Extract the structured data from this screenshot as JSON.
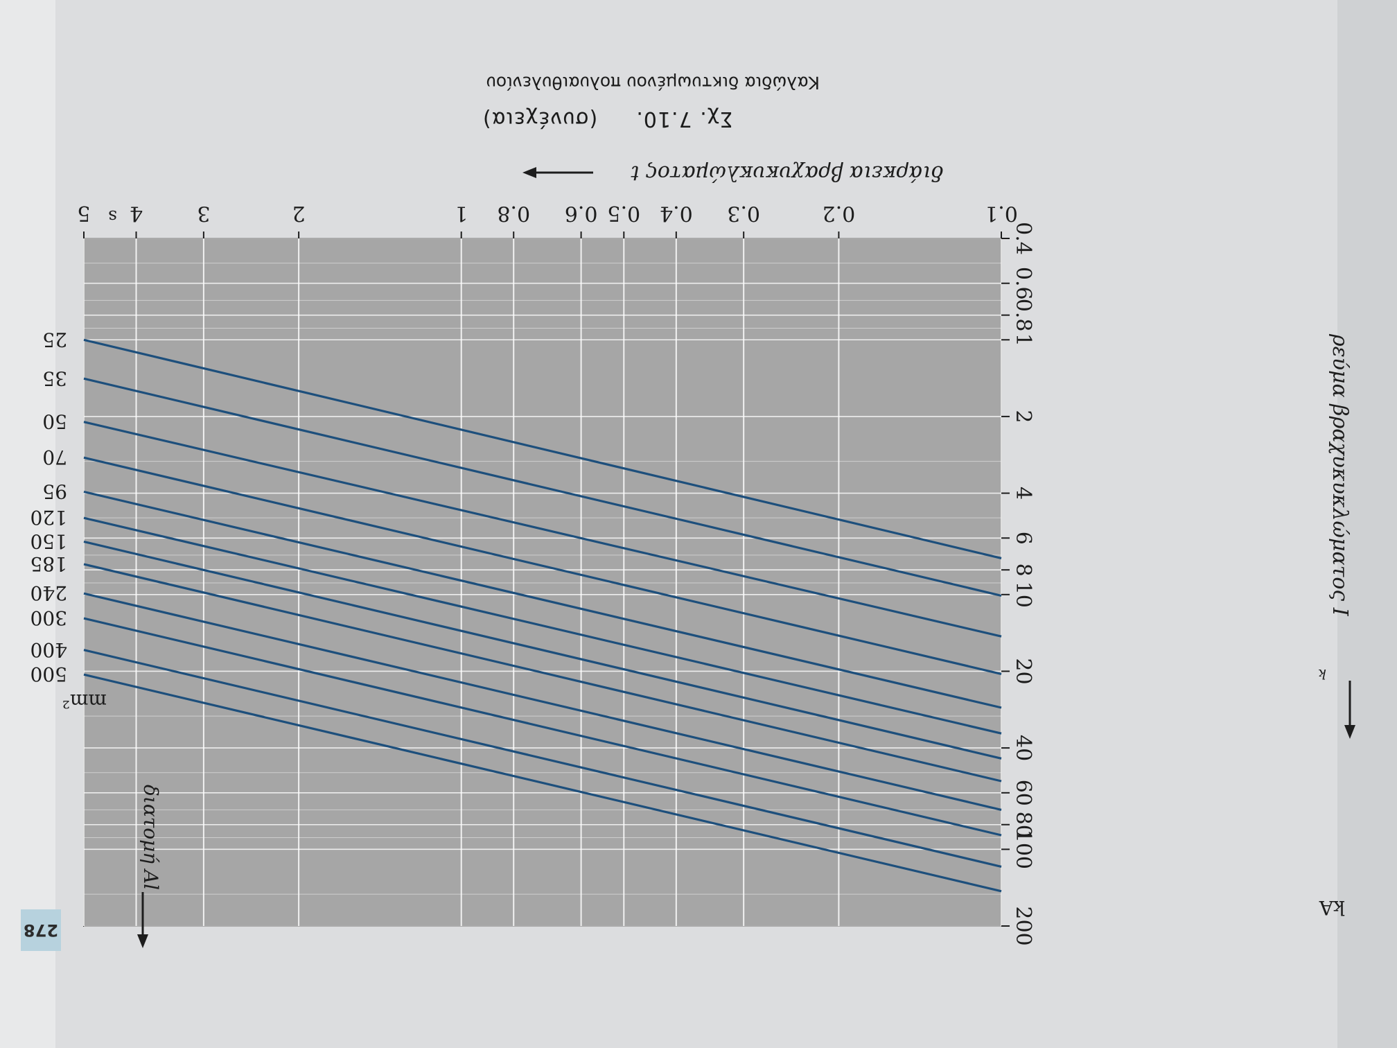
{
  "page": {
    "number": "278",
    "figure_label": "Σχ. 7.10.",
    "figure_note": "(συνέχεια)",
    "subtitle": "Καλώδια δικτυωμένου πολυαιθυλενίου"
  },
  "colors": {
    "plot_background": "#a6a6a6",
    "grid": "#ffffff",
    "lines": "#1d4f7c",
    "accent": "#b7d2de"
  },
  "chart_data": {
    "type": "line",
    "title": "",
    "xlabel": "διάρκεια βραχυκυκλώματος t",
    "xunit": "s",
    "ylabel": "ρεύμα βραχυκυκλώματος I",
    "ylabel_subscript": "k",
    "yunit": "kA",
    "xscale": "log",
    "yscale": "log",
    "xlim": [
      0.1,
      5
    ],
    "ylim": [
      0.4,
      200
    ],
    "x_ticks": [
      0.1,
      0.2,
      0.3,
      0.4,
      0.5,
      0.6,
      0.8,
      1,
      2,
      3,
      4,
      5
    ],
    "x_tick_labels": [
      "0.1",
      "0.2",
      "0.3",
      "0.4",
      "0.5",
      "0.6",
      "0.8",
      "1",
      "2",
      "3",
      "4",
      "5"
    ],
    "y_ticks": [
      0.4,
      0.6,
      0.8,
      1,
      2,
      4,
      6,
      8,
      10,
      20,
      40,
      60,
      80,
      100,
      200
    ],
    "y_tick_labels": [
      "0.4",
      "0.6",
      "0.8",
      "1",
      "2",
      "4",
      "6",
      "8",
      "10",
      "20",
      "40",
      "60",
      "80",
      "100",
      "200"
    ],
    "grid": true,
    "legend": "none",
    "series_label": "διατομή Al",
    "series_unit": "mm²",
    "series": [
      {
        "name": "25",
        "x": [
          0.1,
          5
        ],
        "y": [
          7.2,
          1.0
        ]
      },
      {
        "name": "35",
        "x": [
          0.1,
          5
        ],
        "y": [
          10.1,
          1.42
        ]
      },
      {
        "name": "50",
        "x": [
          0.1,
          5
        ],
        "y": [
          14.6,
          2.1
        ]
      },
      {
        "name": "70",
        "x": [
          0.1,
          5
        ],
        "y": [
          20.5,
          2.9
        ]
      },
      {
        "name": "95",
        "x": [
          0.1,
          5
        ],
        "y": [
          27.8,
          3.95
        ]
      },
      {
        "name": "120",
        "x": [
          0.1,
          5
        ],
        "y": [
          35.1,
          5.0
        ]
      },
      {
        "name": "150",
        "x": [
          0.1,
          5
        ],
        "y": [
          44,
          6.2
        ]
      },
      {
        "name": "185",
        "x": [
          0.1,
          5
        ],
        "y": [
          54,
          7.6
        ]
      },
      {
        "name": "240",
        "x": [
          0.1,
          5
        ],
        "y": [
          70,
          9.9
        ]
      },
      {
        "name": "300",
        "x": [
          0.1,
          5
        ],
        "y": [
          88,
          12.4
        ]
      },
      {
        "name": "400",
        "x": [
          0.1,
          5
        ],
        "y": [
          117,
          16.5
        ]
      },
      {
        "name": "500",
        "x": [
          0.1,
          5
        ],
        "y": [
          146,
          20.6
        ]
      }
    ]
  }
}
